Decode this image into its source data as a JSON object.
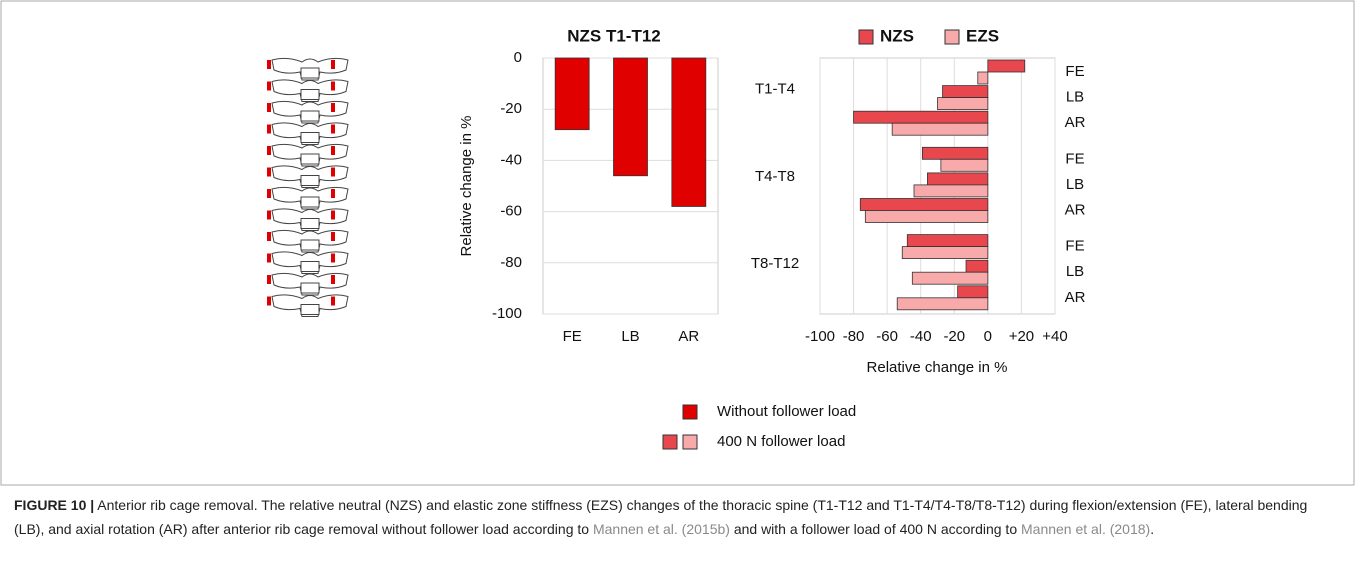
{
  "chart_data": [
    {
      "type": "bar",
      "title": "NZS T1-T12",
      "y_label": "Relative change in %",
      "categories": [
        "FE",
        "LB",
        "AR"
      ],
      "values": [
        -28,
        -46,
        -58
      ],
      "color": "#e00000",
      "ylim": [
        -100,
        0
      ],
      "yticks": [
        0,
        -20,
        -40,
        -60,
        -80,
        -100
      ],
      "grid": true
    },
    {
      "type": "barh",
      "x_label": "Relative change in %",
      "groups": [
        "T1-T4",
        "T4-T8",
        "T8-T12"
      ],
      "categories": [
        "FE",
        "LB",
        "AR",
        "FE",
        "LB",
        "AR",
        "FE",
        "LB",
        "AR"
      ],
      "series": [
        {
          "name": "NZS",
          "color": "#e8474e",
          "values": [
            22,
            -27,
            -80,
            -39,
            -36,
            -76,
            -48,
            -13,
            -18
          ]
        },
        {
          "name": "EZS",
          "color": "#f8a9aa",
          "values": [
            -6,
            -30,
            -57,
            -28,
            -44,
            -73,
            -51,
            -45,
            -54
          ]
        }
      ],
      "xlim": [
        -100,
        40
      ],
      "xticks": [
        -100,
        -80,
        -60,
        -40,
        -20,
        0,
        {
          "value": 20,
          "label": "+20"
        },
        {
          "value": 40,
          "label": "+40"
        }
      ],
      "grid": true,
      "legend": "top"
    }
  ],
  "legend": [
    {
      "label": "Without follower load",
      "colors": [
        "#e00000"
      ]
    },
    {
      "label": "400 N follower load",
      "colors": [
        "#e8474e",
        "#f8a9aa"
      ]
    }
  ],
  "caption": {
    "label": "FIGURE 10 |",
    "text1": "Anterior rib cage removal. The relative neutral (NZS) and elastic zone stiffness (EZS) changes of the thoracic spine (T1-T12 and T1-T4/T4-T8/T8-T12) during flexion/extension (FE), lateral bending (LB), and axial rotation (AR) after anterior rib cage removal without follower load according to",
    "link1": "Mannen et al. (2015b)",
    "text2": "and with a follower load of 400 N according to",
    "link2": "Mannen et al. (2018)",
    "text3": "."
  }
}
